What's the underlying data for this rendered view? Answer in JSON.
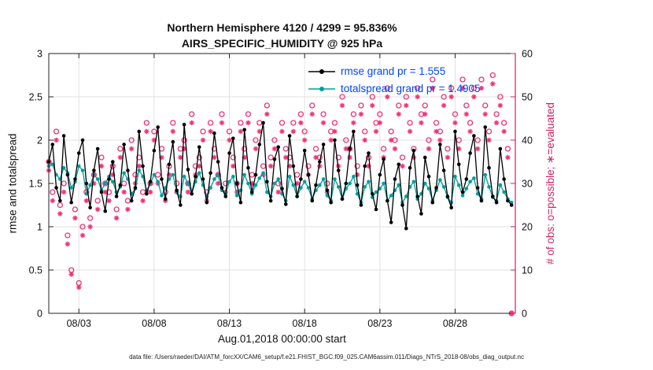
{
  "figure": {
    "title_line1": "Northern Hemisphere 4120 / 4299 = 95.836%",
    "title_line2": "AIRS_SPECIFIC_HUMIDITY @ 925 hPa",
    "xlabel": "Aug.01,2018 00:00:00 start",
    "ylabel_left": "rmse and totalspread",
    "ylabel_right": "# of obs: o=possible; ∗=evaluated",
    "caption": "data file: /Users/raeder/DAI/ATM_forcXX/CAM6_setup/f.e21.FHIST_BGC.f09_025.CAM6assim.011/Diags_NTrS_2018-08/obs_diag_output.nc"
  },
  "legend": {
    "text_color": "#0044ff",
    "entries": [
      {
        "label": "rmse grand pr = 1.555",
        "color": "#000000"
      },
      {
        "label": "totalspread grand pr = 1.4905",
        "color": "#009e9e"
      }
    ]
  },
  "chart_data": {
    "type": "line",
    "title": "Northern Hemisphere 4120 / 4299 = 95.836%",
    "subtitle": "AIRS_SPECIFIC_HUMIDITY @ 925 hPa",
    "xlabel": "Aug.01,2018 00:00:00 start",
    "ylabel_left": "rmse and totalspread",
    "ylabel_right": "# of obs: o=possible; ∗=evaluated",
    "x_start": 0,
    "x_step": 0.25,
    "xlim": [
      0,
      31
    ],
    "ylim_left": [
      0,
      3
    ],
    "ylim_right": [
      0,
      60
    ],
    "x_ticks": {
      "days": [
        2,
        7,
        12,
        17,
        22,
        27
      ],
      "labels": [
        "08/03",
        "08/08",
        "08/13",
        "08/18",
        "08/23",
        "08/28"
      ]
    },
    "y_left_ticks": {
      "values": [
        0,
        0.5,
        1,
        1.5,
        2,
        2.5,
        3
      ],
      "labels": [
        "0",
        "0.5",
        "1",
        "1.5",
        "2",
        "2.5",
        "3"
      ]
    },
    "y_right_ticks": {
      "values": [
        0,
        10,
        20,
        30,
        40,
        50,
        60
      ],
      "labels": [
        "0",
        "10",
        "20",
        "30",
        "40",
        "50",
        "60"
      ]
    },
    "colors": {
      "rmse": "#000000",
      "totalspread": "#009e9e",
      "obs": "#ee3377",
      "right_axis": "#cc2266",
      "grid": "#e2e2e2",
      "axis": "#222222",
      "legend_text": "#0044ff"
    },
    "series_left": [
      {
        "name": "rmse",
        "grand_mean": 1.555,
        "values": [
          1.75,
          1.95,
          1.45,
          1.3,
          2.05,
          1.6,
          1.28,
          1.55,
          1.85,
          2.0,
          1.5,
          1.22,
          1.65,
          1.9,
          1.4,
          1.18,
          1.55,
          1.75,
          1.35,
          1.48,
          1.95,
          1.65,
          1.3,
          1.45,
          2.1,
          1.7,
          1.38,
          1.52,
          1.88,
          2.15,
          1.55,
          1.32,
          1.72,
          1.98,
          1.42,
          1.25,
          2.18,
          1.66,
          1.38,
          1.58,
          1.92,
          1.55,
          1.28,
          1.62,
          2.08,
          1.75,
          1.45,
          1.35,
          1.85,
          2.02,
          1.5,
          1.28,
          2.12,
          1.68,
          1.4,
          1.6,
          1.95,
          2.2,
          1.52,
          1.3,
          1.78,
          1.92,
          1.44,
          1.26,
          2.05,
          1.7,
          1.35,
          1.55,
          1.88,
          1.6,
          1.3,
          1.48,
          1.75,
          1.95,
          1.42,
          1.28,
          2.0,
          1.65,
          1.32,
          1.5,
          1.9,
          2.1,
          1.48,
          1.25,
          1.7,
          1.85,
          1.38,
          1.2,
          1.6,
          1.78,
          1.3,
          1.05,
          1.55,
          1.72,
          1.25,
          0.98,
          1.68,
          1.88,
          1.35,
          1.15,
          1.8,
          1.58,
          1.28,
          1.45,
          1.95,
          1.65,
          1.35,
          1.22,
          2.1,
          1.72,
          1.4,
          1.55,
          1.85,
          2.05,
          1.45,
          1.3,
          2.15,
          1.68,
          1.35,
          1.28,
          1.9,
          1.55,
          1.3,
          1.25
        ]
      },
      {
        "name": "totalspread",
        "grand_mean": 1.4905,
        "values": [
          1.7,
          1.72,
          1.6,
          1.55,
          1.68,
          1.62,
          1.45,
          1.52,
          1.7,
          1.65,
          1.38,
          1.48,
          1.6,
          1.55,
          1.42,
          1.5,
          1.58,
          1.52,
          1.4,
          1.46,
          1.62,
          1.55,
          1.38,
          1.44,
          1.65,
          1.58,
          1.42,
          1.5,
          1.6,
          1.52,
          1.36,
          1.45,
          1.55,
          1.6,
          1.4,
          1.35,
          1.58,
          1.5,
          1.38,
          1.52,
          1.62,
          1.48,
          1.35,
          1.45,
          1.55,
          1.6,
          1.42,
          1.38,
          1.52,
          1.58,
          1.36,
          1.42,
          1.6,
          1.5,
          1.38,
          1.48,
          1.56,
          1.62,
          1.4,
          1.35,
          1.5,
          1.55,
          1.38,
          1.3,
          1.58,
          1.48,
          1.35,
          1.45,
          1.52,
          1.45,
          1.32,
          1.42,
          1.48,
          1.55,
          1.36,
          1.3,
          1.55,
          1.46,
          1.32,
          1.44,
          1.5,
          1.58,
          1.38,
          1.28,
          1.46,
          1.52,
          1.34,
          1.4,
          1.44,
          1.5,
          1.3,
          1.36,
          1.42,
          1.48,
          1.28,
          1.35,
          1.46,
          1.52,
          1.32,
          1.38,
          1.5,
          1.44,
          1.3,
          1.42,
          1.54,
          1.46,
          1.34,
          1.28,
          1.58,
          1.48,
          1.36,
          1.44,
          1.52,
          1.56,
          1.38,
          1.32,
          1.6,
          1.46,
          1.34,
          1.3,
          1.48,
          1.4,
          1.32,
          1.28
        ]
      }
    ],
    "series_right": [
      {
        "name": "possible",
        "marker": "circle",
        "values": [
          35,
          28,
          42,
          25,
          30,
          18,
          10,
          24,
          7,
          20,
          28,
          22,
          32,
          26,
          36,
          30,
          28,
          34,
          24,
          38,
          30,
          26,
          40,
          32,
          36,
          28,
          44,
          30,
          42,
          32,
          38,
          28,
          34,
          44,
          30,
          38,
          40,
          30,
          46,
          34,
          36,
          42,
          28,
          44,
          38,
          32,
          46,
          30,
          42,
          36,
          30,
          44,
          38,
          46,
          32,
          40,
          44,
          34,
          48,
          36,
          40,
          30,
          44,
          38,
          36,
          44,
          32,
          46,
          42,
          34,
          48,
          38,
          36,
          46,
          30,
          42,
          44,
          36,
          50,
          40,
          38,
          46,
          34,
          48,
          42,
          36,
          50,
          44,
          46,
          38,
          52,
          42,
          40,
          48,
          36,
          50,
          44,
          38,
          52,
          46,
          48,
          40,
          54,
          44,
          42,
          50,
          38,
          52,
          46,
          40,
          54,
          48,
          44,
          52,
          40,
          54,
          48,
          42,
          55,
          46,
          50,
          44,
          38,
          0
        ]
      },
      {
        "name": "evaluated",
        "marker": "asterisk",
        "values": [
          33,
          26,
          40,
          23,
          28,
          16,
          9,
          22,
          6,
          18,
          26,
          20,
          30,
          24,
          34,
          28,
          26,
          32,
          22,
          36,
          28,
          24,
          38,
          30,
          34,
          26,
          42,
          28,
          40,
          30,
          36,
          26,
          32,
          42,
          28,
          36,
          38,
          28,
          44,
          32,
          34,
          40,
          26,
          42,
          36,
          30,
          44,
          28,
          40,
          34,
          28,
          42,
          36,
          44,
          30,
          38,
          42,
          32,
          46,
          34,
          38,
          28,
          42,
          36,
          34,
          42,
          30,
          44,
          40,
          32,
          46,
          36,
          34,
          44,
          28,
          40,
          42,
          34,
          48,
          38,
          36,
          44,
          32,
          46,
          40,
          34,
          48,
          42,
          44,
          36,
          50,
          40,
          38,
          46,
          34,
          48,
          42,
          36,
          50,
          44,
          46,
          38,
          52,
          42,
          40,
          48,
          36,
          50,
          44,
          38,
          52,
          46,
          42,
          50,
          38,
          52,
          46,
          40,
          53,
          44,
          48,
          42,
          36,
          0
        ]
      }
    ]
  }
}
